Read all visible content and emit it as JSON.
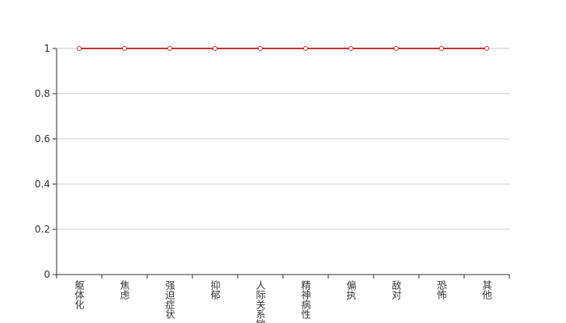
{
  "chart_data": {
    "type": "line",
    "categories": [
      "躯体化",
      "焦虑",
      "强迫症状",
      "抑郁",
      "人际关系敏感",
      "精神病性",
      "偏执",
      "敌对",
      "恐怖",
      "其他"
    ],
    "series": [
      {
        "color": "#c23531",
        "values": [
          1,
          1,
          1,
          1,
          1,
          1,
          1,
          1,
          1,
          1
        ]
      }
    ],
    "ylim": [
      0,
      1
    ],
    "yticks": [
      0,
      0.2,
      0.4,
      0.6,
      0.8,
      1
    ],
    "grid": true
  }
}
